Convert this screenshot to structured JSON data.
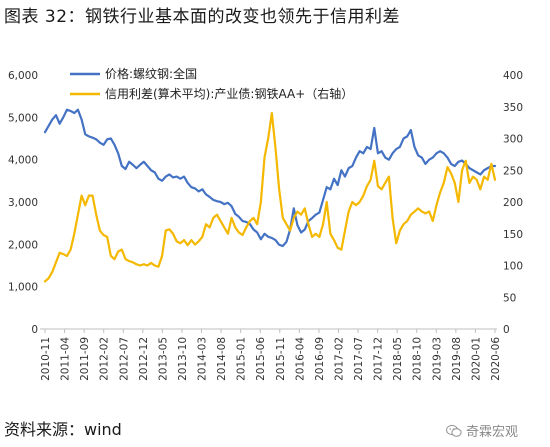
{
  "figure_title": "图表 32：钢铁行业基本面的改变也领先于信用利差",
  "source_label": "资料来源：wind",
  "watermark_text": "奇霖宏观",
  "chart_data": {
    "type": "line",
    "title": "",
    "legend_position": "top-left",
    "grid": false,
    "left_axis": {
      "ylim": [
        0,
        6000
      ],
      "ticks": [
        "0",
        "1,000",
        "2,000",
        "3,000",
        "4,000",
        "5,000",
        "6,000"
      ]
    },
    "right_axis": {
      "ylim": [
        0,
        400
      ],
      "ticks": [
        "0",
        "50",
        "100",
        "150",
        "200",
        "250",
        "300",
        "350",
        "400"
      ]
    },
    "x_ticks": [
      "2010-11",
      "2011-04",
      "2011-09",
      "2012-02",
      "2012-07",
      "2012-12",
      "2013-05",
      "2013-10",
      "2014-03",
      "2014-08",
      "2015-01",
      "2015-06",
      "2015-11",
      "2016-04",
      "2016-09",
      "2017-02",
      "2017-07",
      "2017-12",
      "2018-05",
      "2018-10",
      "2019-03",
      "2019-08",
      "2020-01",
      "2020-06"
    ],
    "series": [
      {
        "name": "价格:螺纹钢:全国",
        "axis": "left",
        "color": "#4472C4",
        "values": [
          4650,
          4800,
          4950,
          5050,
          4850,
          5000,
          5180,
          5150,
          5100,
          5180,
          4950,
          4600,
          4550,
          4520,
          4480,
          4400,
          4350,
          4480,
          4500,
          4350,
          4150,
          3850,
          3780,
          3950,
          3880,
          3800,
          3880,
          3950,
          3850,
          3750,
          3700,
          3550,
          3500,
          3600,
          3650,
          3580,
          3600,
          3550,
          3600,
          3450,
          3350,
          3320,
          3250,
          3300,
          3180,
          3120,
          3050,
          3020,
          3000,
          2950,
          2980,
          2900,
          2720,
          2650,
          2550,
          2530,
          2480,
          2350,
          2280,
          2120,
          2250,
          2180,
          2150,
          2100,
          1990,
          1960,
          2060,
          2350,
          2850,
          2450,
          2280,
          2350,
          2550,
          2620,
          2700,
          2750,
          3050,
          3350,
          3300,
          3550,
          3400,
          3750,
          3600,
          3800,
          3850,
          4050,
          4200,
          4150,
          4300,
          4250,
          4750,
          4150,
          4200,
          4050,
          4000,
          4150,
          4250,
          4300,
          4500,
          4550,
          4700,
          4300,
          4100,
          4050,
          3900,
          4000,
          4050,
          4150,
          4200,
          4150,
          4050,
          3900,
          3850,
          3950,
          3980,
          3900,
          3800,
          3750,
          3700,
          3650,
          3750,
          3800,
          3850,
          3850
        ]
      },
      {
        "name": "信用利差(算术平均):产业债:钢铁AA+（右轴）",
        "axis": "right",
        "color": "#F5B800",
        "values": [
          75,
          80,
          90,
          105,
          120,
          118,
          115,
          125,
          150,
          180,
          210,
          195,
          210,
          210,
          180,
          155,
          148,
          145,
          115,
          110,
          122,
          125,
          110,
          107,
          105,
          102,
          100,
          102,
          100,
          104,
          100,
          98,
          115,
          155,
          157,
          150,
          138,
          135,
          140,
          132,
          140,
          133,
          138,
          145,
          165,
          160,
          175,
          180,
          170,
          160,
          150,
          175,
          160,
          152,
          148,
          160,
          170,
          175,
          165,
          200,
          270,
          300,
          340,
          285,
          220,
          175,
          165,
          155,
          175,
          185,
          180,
          190,
          165,
          145,
          150,
          145,
          165,
          200,
          150,
          140,
          128,
          125,
          155,
          185,
          200,
          195,
          200,
          210,
          225,
          235,
          265,
          225,
          220,
          230,
          240,
          175,
          135,
          155,
          165,
          170,
          180,
          185,
          190,
          185,
          182,
          185,
          170,
          195,
          215,
          230,
          255,
          245,
          230,
          200,
          250,
          265,
          230,
          240,
          235,
          220,
          240,
          235,
          260,
          235
        ]
      }
    ]
  }
}
